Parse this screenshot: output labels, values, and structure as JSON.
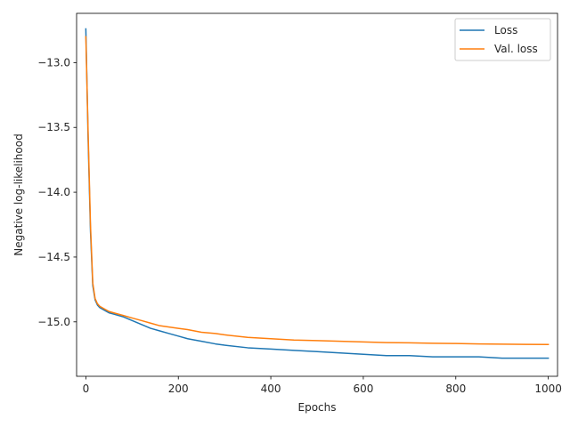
{
  "chart_data": {
    "type": "line",
    "title": "",
    "xlabel": "Epochs",
    "ylabel": "Negative log-likelihood",
    "xlim": [
      -20,
      1020
    ],
    "ylim": [
      -15.42,
      -12.62
    ],
    "xticks": [
      0,
      200,
      400,
      600,
      800,
      1000
    ],
    "xtick_labels": [
      "0",
      "200",
      "400",
      "600",
      "800",
      "1000"
    ],
    "yticks": [
      -13.0,
      -13.5,
      -14.0,
      -14.5,
      -15.0
    ],
    "ytick_labels": [
      "−13.0",
      "−13.5",
      "−14.0",
      "−14.5",
      "−15.0"
    ],
    "grid": false,
    "legend_position": "top-right",
    "series": [
      {
        "name": "Loss",
        "color": "#1f77b4",
        "x": [
          0,
          5,
          10,
          15,
          20,
          25,
          30,
          40,
          50,
          60,
          80,
          100,
          120,
          140,
          160,
          180,
          200,
          220,
          250,
          280,
          300,
          350,
          400,
          450,
          500,
          550,
          600,
          650,
          700,
          750,
          800,
          850,
          900,
          950,
          1000
        ],
        "y": [
          -12.74,
          -13.6,
          -14.3,
          -14.72,
          -14.83,
          -14.87,
          -14.89,
          -14.91,
          -14.93,
          -14.94,
          -14.96,
          -14.99,
          -15.02,
          -15.05,
          -15.07,
          -15.09,
          -15.11,
          -15.13,
          -15.15,
          -15.17,
          -15.18,
          -15.2,
          -15.21,
          -15.22,
          -15.23,
          -15.24,
          -15.25,
          -15.26,
          -15.26,
          -15.27,
          -15.27,
          -15.27,
          -15.28,
          -15.28,
          -15.28
        ]
      },
      {
        "name": "Val. loss",
        "color": "#ff7f0e",
        "x": [
          0,
          5,
          10,
          15,
          20,
          25,
          30,
          40,
          50,
          60,
          80,
          100,
          120,
          140,
          160,
          180,
          200,
          220,
          250,
          280,
          300,
          350,
          400,
          450,
          500,
          550,
          600,
          650,
          700,
          750,
          800,
          850,
          900,
          950,
          1000
        ],
        "y": [
          -12.8,
          -13.55,
          -14.25,
          -14.7,
          -14.82,
          -14.86,
          -14.88,
          -14.9,
          -14.92,
          -14.93,
          -14.95,
          -14.97,
          -14.99,
          -15.01,
          -15.03,
          -15.04,
          -15.05,
          -15.06,
          -15.08,
          -15.09,
          -15.1,
          -15.12,
          -15.13,
          -15.14,
          -15.145,
          -15.15,
          -15.155,
          -15.16,
          -15.162,
          -15.165,
          -15.167,
          -15.17,
          -15.172,
          -15.174,
          -15.175
        ]
      }
    ]
  }
}
